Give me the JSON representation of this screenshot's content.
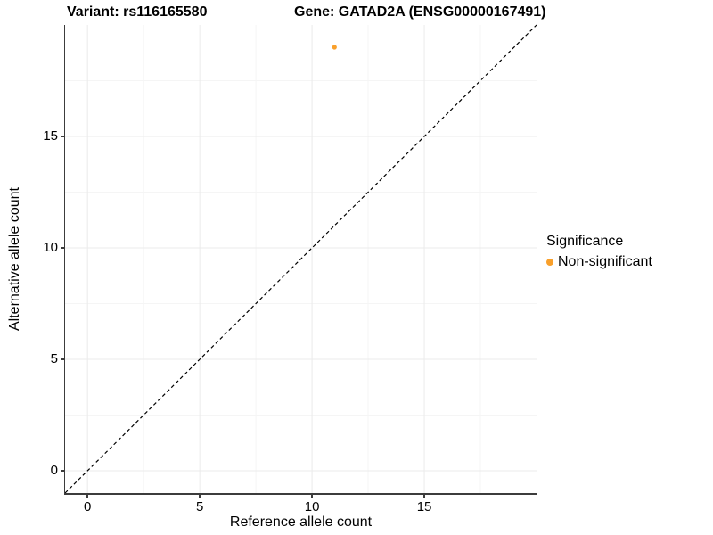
{
  "chart_data": {
    "type": "scatter",
    "titles": {
      "left": "Variant: rs116165580",
      "right": "Gene: GATAD2A (ENSG00000167491)"
    },
    "xlabel": "Reference allele count",
    "ylabel": "Alternative allele count",
    "xlim": [
      -1,
      20
    ],
    "ylim": [
      -1,
      20
    ],
    "x_ticks": {
      "values": [
        0,
        5,
        10,
        15
      ],
      "labels": [
        "0",
        "5",
        "10",
        "15"
      ]
    },
    "y_ticks": {
      "values": [
        0,
        5,
        10,
        15
      ],
      "labels": [
        "0",
        "5",
        "10",
        "15"
      ]
    },
    "x_minor": [
      2.5,
      7.5,
      12.5,
      17.5
    ],
    "y_minor": [
      2.5,
      7.5,
      12.5,
      17.5
    ],
    "grid": "major+minor",
    "identity_line": {
      "from": [
        -1,
        -1
      ],
      "to": [
        20,
        20
      ],
      "style": "dashed",
      "color": "#000000"
    },
    "series": [
      {
        "name": "Non-significant",
        "color": "#F9A02B",
        "points": [
          {
            "x": 11,
            "y": 19
          }
        ]
      }
    ],
    "legend": {
      "title": "Significance",
      "position": "right",
      "entries": [
        {
          "label": "Non-significant",
          "color": "#F9A02B"
        }
      ]
    }
  },
  "colors": {
    "background": "#FFFFFF",
    "axis_line": "#3C3C3C",
    "grid_major": "#EBEBEB",
    "grid_minor": "#F5F5F5",
    "text": "#000000"
  }
}
